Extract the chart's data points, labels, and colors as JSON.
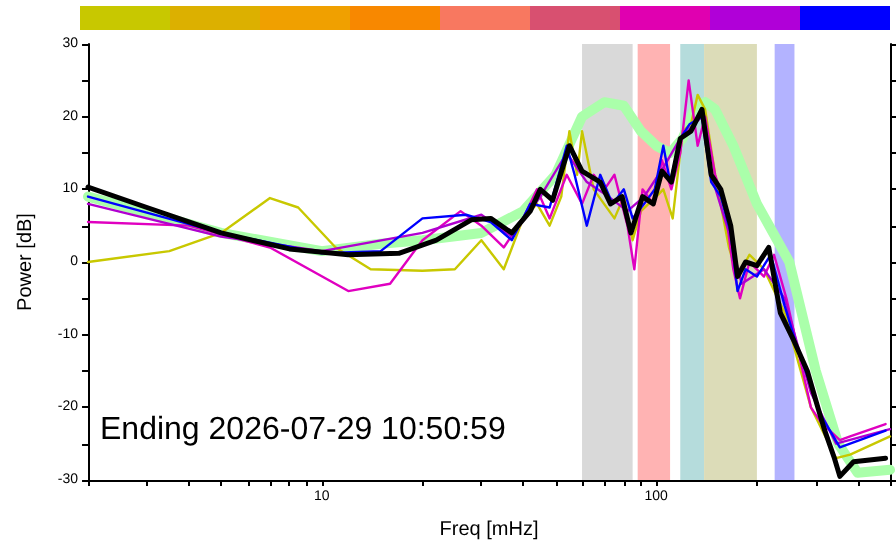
{
  "chart_data": {
    "type": "line",
    "xlabel": "Freq [mHz]",
    "ylabel": "Power [dB]",
    "log": "x",
    "annotations": [
      "Ending 2026-07-29 10:50:59"
    ],
    "xlim": [
      2,
      500
    ],
    "xticks": [
      {
        "value": 2,
        "label": null
      },
      {
        "value": 3,
        "label": null
      },
      {
        "value": 4,
        "label": null
      },
      {
        "value": 5,
        "label": null
      },
      {
        "value": 6,
        "label": null
      },
      {
        "value": 7,
        "label": null
      },
      {
        "value": 8,
        "label": null
      },
      {
        "value": 9,
        "label": null
      },
      10,
      {
        "value": 20,
        "label": null
      },
      {
        "value": 30,
        "label": null
      },
      {
        "value": 40,
        "label": null
      },
      {
        "value": 50,
        "label": null
      },
      {
        "value": 60,
        "label": null
      },
      {
        "value": 70,
        "label": null
      },
      {
        "value": 80,
        "label": null
      },
      {
        "value": 90,
        "label": null
      },
      100,
      {
        "value": 200,
        "label": null
      },
      {
        "value": 300,
        "label": null
      },
      {
        "value": 400,
        "label": null
      },
      {
        "value": 500,
        "label": null
      }
    ],
    "ylim": [
      -30,
      30
    ],
    "yticks": [
      -30,
      {
        "value": -25,
        "label": null
      },
      -20,
      {
        "value": -15,
        "label": null
      },
      -10,
      {
        "value": -5,
        "label": null
      },
      0,
      {
        "value": 5,
        "label": null
      },
      10,
      {
        "value": 15,
        "label": null
      },
      20,
      {
        "value": 25,
        "label": null
      },
      30
    ],
    "marker": "none",
    "line_style": "solid",
    "bands": [
      {
        "axis": "x",
        "from": 60,
        "to": 85,
        "color": "#d9d9d9"
      },
      {
        "axis": "x",
        "from": 88,
        "to": 110,
        "color": "#ffb3b3"
      },
      {
        "axis": "x",
        "from": 118,
        "to": 139,
        "color": "#b5dcdc"
      },
      {
        "axis": "x",
        "from": 139,
        "to": 200,
        "color": "#dcdcb8"
      },
      {
        "axis": "x",
        "from": 226,
        "to": 259,
        "color": "#b3b3ff"
      }
    ],
    "series": [
      {
        "color": "#aaffaa",
        "x": [
          2,
          5,
          10,
          15,
          20,
          30,
          40,
          50,
          60,
          70,
          80,
          90,
          100,
          110,
          120,
          130,
          140,
          150,
          170,
          200,
          250,
          300,
          350,
          400,
          500
        ],
        "values": [
          9,
          4,
          1.5,
          2.5,
          3,
          4,
          7,
          12,
          20,
          22,
          21.5,
          18,
          16,
          15,
          17,
          21,
          22,
          21,
          16,
          8,
          0,
          -15,
          -25,
          -29,
          -28.6
        ]
      },
      {
        "color": "#c8c800",
        "x": [
          2,
          3.5,
          5,
          7,
          8.5,
          11,
          14,
          20,
          25,
          30,
          35,
          40,
          44,
          48,
          52,
          55,
          58,
          60,
          65,
          75,
          80,
          85,
          90,
          100,
          105,
          112,
          120,
          127,
          133,
          140,
          150,
          165,
          175,
          190,
          210,
          242,
          290,
          345,
          380,
          500
        ],
        "values": [
          0,
          1.5,
          4,
          8.8,
          7.5,
          2,
          -1,
          -1.2,
          -1,
          3,
          -1,
          6,
          8,
          5,
          9,
          18,
          12,
          18,
          10,
          6,
          9,
          3,
          7,
          9,
          10,
          6,
          18,
          19,
          23,
          21,
          12,
          2,
          -2,
          1,
          -1,
          -7,
          -20,
          -27,
          -26.5,
          -24
        ]
      },
      {
        "color": "#e000c0",
        "x": [
          2,
          4,
          7,
          12,
          16,
          20,
          26,
          30,
          35,
          40,
          44,
          48,
          54,
          60,
          65,
          70,
          75,
          82,
          86,
          91,
          98,
          104,
          111,
          118,
          125,
          133,
          140,
          150,
          160,
          170,
          178,
          190,
          210,
          225,
          245,
          265,
          290,
          310,
          354,
          380,
          485
        ],
        "values": [
          5.5,
          5,
          2,
          -4,
          -3,
          3,
          7,
          5,
          2,
          6,
          10,
          6,
          12,
          8,
          12,
          10,
          12,
          5,
          -1,
          10,
          8,
          14,
          10,
          15,
          25,
          16,
          20,
          12,
          8,
          -1,
          -5,
          0,
          -2,
          1,
          -5,
          -12,
          -20,
          -22,
          -24.5,
          -24,
          -22.3
        ]
      },
      {
        "color": "#b000d0",
        "x": [
          2,
          5,
          10,
          20,
          30,
          37,
          45,
          54,
          62,
          72,
          82,
          92,
          105,
          118,
          130,
          137,
          146,
          165,
          180,
          210,
          242,
          290,
          345,
          500
        ],
        "values": [
          8,
          3.5,
          1.5,
          4,
          6.5,
          3.5,
          9,
          15,
          11,
          9,
          7,
          9,
          13,
          17,
          19,
          20,
          12,
          4,
          -3,
          -1,
          -5,
          -18,
          -25,
          -23
        ]
      },
      {
        "color": "#0000ff",
        "x": [
          2,
          5,
          10,
          15,
          20,
          27,
          32,
          37,
          42,
          48,
          54,
          57,
          62,
          68,
          74,
          80,
          85,
          92,
          99,
          105,
          110,
          118,
          126,
          137,
          146,
          156,
          167,
          175,
          185,
          200,
          220,
          242,
          265,
          290,
          310,
          354,
          380,
          485
        ],
        "values": [
          9,
          4,
          1.2,
          1.5,
          6,
          6.5,
          5.5,
          3,
          8,
          7.5,
          16,
          12,
          5,
          12,
          8,
          10,
          6,
          8,
          10,
          16,
          11,
          17,
          19,
          20,
          11,
          9,
          4,
          -4,
          -1,
          -2,
          1,
          -6,
          -12,
          -17,
          -21,
          -25.5,
          -25,
          -23.2
        ]
      },
      {
        "color": "#000000",
        "x": [
          2,
          3,
          5,
          8,
          12,
          17,
          22,
          28,
          32,
          37,
          42,
          45,
          49,
          55,
          60,
          68,
          73,
          79,
          84,
          91,
          98,
          104,
          111,
          118,
          127,
          137,
          146,
          156,
          167,
          175,
          185,
          200,
          217,
          235,
          259,
          283,
          302,
          318,
          341,
          354,
          389,
          485
        ],
        "values": [
          10.3,
          7.5,
          4,
          1.8,
          1,
          1.2,
          3,
          5.8,
          6,
          4,
          7,
          10,
          8.5,
          16,
          12.5,
          11,
          8,
          9,
          4,
          9,
          8,
          12.5,
          11,
          17,
          18,
          21,
          12,
          10,
          5,
          -2,
          0,
          -0.5,
          2,
          -7,
          -11,
          -15,
          -19.5,
          -23,
          -27,
          -29.5,
          -27.5,
          -27
        ]
      }
    ]
  }
}
